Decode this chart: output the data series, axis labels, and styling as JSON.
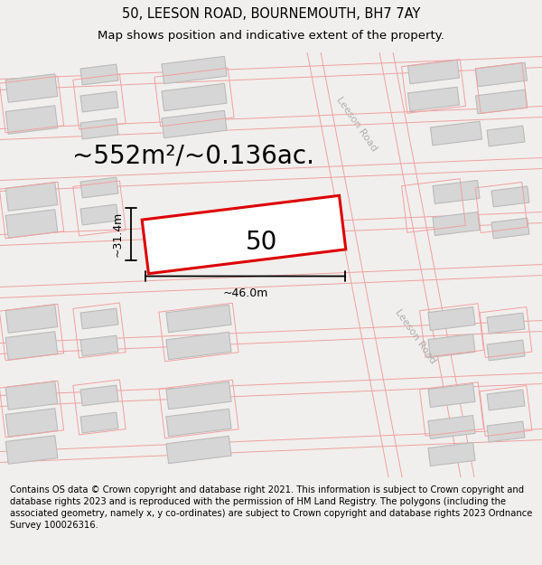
{
  "title_line1": "50, LEESON ROAD, BOURNEMOUTH, BH7 7AY",
  "title_line2": "Map shows position and indicative extent of the property.",
  "area_text": "~552m²/~0.136ac.",
  "label_50": "50",
  "dim_width": "~46.0m",
  "dim_height": "~31.4m",
  "road_label": "Leeson Road",
  "footer_text": "Contains OS data © Crown copyright and database right 2021. This information is subject to Crown copyright and database rights 2023 and is reproduced with the permission of HM Land Registry. The polygons (including the associated geometry, namely x, y co-ordinates) are subject to Crown copyright and database rights 2023 Ordnance Survey 100026316.",
  "bg_color": "#f0efed",
  "map_bg": "#ffffff",
  "building_fill": "#d6d6d6",
  "building_edge": "#bbbbbb",
  "road_line_color": "#f0a0a0",
  "plot_color": "#dd0000",
  "plot_fill": "#ffffff",
  "dim_line_color": "#000000",
  "title_fontsize": 10.5,
  "subtitle_fontsize": 9.5,
  "area_fontsize": 20,
  "label_fontsize": 20,
  "dim_fontsize": 9,
  "road_fontsize": 8,
  "footer_fontsize": 7.2
}
